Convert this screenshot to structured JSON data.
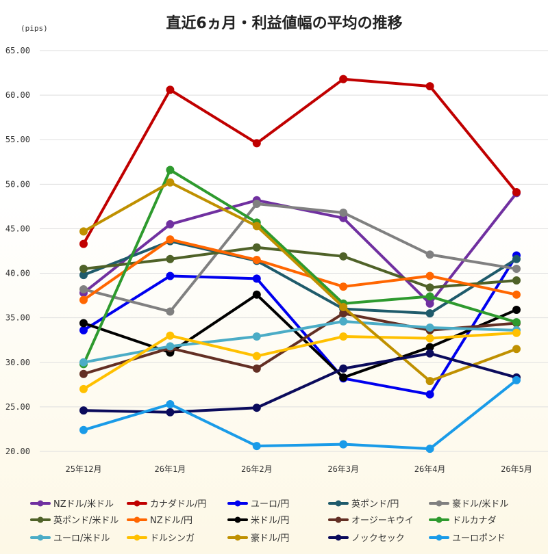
{
  "chart_data": {
    "type": "line",
    "title": "直近6ヵ月・利益値幅の平均の推移",
    "ylabel": "(pips)",
    "xlabel": "",
    "ylim": [
      20,
      65
    ],
    "yticks": [
      "20.00",
      "25.00",
      "30.00",
      "35.00",
      "40.00",
      "45.00",
      "50.00",
      "55.00",
      "60.00",
      "65.00"
    ],
    "categories": [
      "25年12月",
      "26年1月",
      "26年2月",
      "26年3月",
      "26年4月",
      "26年5月"
    ],
    "grid": true,
    "legend_position": "bottom",
    "series": [
      {
        "name": "NZドル/米ドル",
        "color": "#7030a0",
        "values": [
          37.8,
          45.5,
          48.2,
          46.2,
          36.6,
          49.0
        ]
      },
      {
        "name": "カナダドル/円",
        "color": "#c00000",
        "values": [
          43.3,
          60.6,
          54.6,
          61.8,
          61.0,
          49.1
        ]
      },
      {
        "name": "ユーロ/円",
        "color": "#0000ee",
        "values": [
          33.6,
          39.7,
          39.4,
          28.2,
          26.4,
          42.0
        ]
      },
      {
        "name": "英ポンド/円",
        "color": "#1f5b6b",
        "values": [
          39.8,
          43.6,
          41.4,
          36.0,
          35.5,
          41.6
        ]
      },
      {
        "name": "豪ドル/米ドル",
        "color": "#808080",
        "values": [
          38.2,
          35.7,
          47.8,
          46.8,
          42.1,
          40.5
        ]
      },
      {
        "name": "英ポンド/米ドル",
        "color": "#4f6228",
        "values": [
          40.5,
          41.6,
          42.9,
          41.9,
          38.4,
          39.2
        ]
      },
      {
        "name": "NZドル/円",
        "color": "#ff6600",
        "values": [
          37.0,
          43.8,
          41.5,
          38.5,
          39.7,
          37.6
        ]
      },
      {
        "name": "米ドル/円",
        "color": "#000000",
        "values": [
          34.4,
          31.1,
          37.6,
          28.3,
          31.7,
          35.9
        ]
      },
      {
        "name": "オージーキウイ",
        "color": "#632f24",
        "values": [
          28.7,
          31.6,
          29.3,
          35.5,
          33.6,
          34.4
        ]
      },
      {
        "name": "ドルカナダ",
        "color": "#2e9a2e",
        "values": [
          29.8,
          51.6,
          45.7,
          36.6,
          37.4,
          34.5
        ]
      },
      {
        "name": "ユーロ/米ドル",
        "color": "#4bacc6",
        "values": [
          30.0,
          31.8,
          32.9,
          34.6,
          33.9,
          33.6
        ]
      },
      {
        "name": "ドルシンガ",
        "color": "#ffc000",
        "values": [
          27.0,
          33.0,
          30.7,
          32.9,
          32.7,
          33.3
        ]
      },
      {
        "name": "豪ドル/円",
        "color": "#bf9000",
        "values": [
          44.7,
          50.2,
          45.3,
          36.2,
          27.9,
          31.5
        ]
      },
      {
        "name": "ノックセック",
        "color": "#0b0b5c",
        "values": [
          24.6,
          24.4,
          24.9,
          29.3,
          31.0,
          28.3
        ]
      },
      {
        "name": "ユーロポンド",
        "color": "#1a9be8",
        "values": [
          22.4,
          25.3,
          20.6,
          20.8,
          20.3,
          28.0
        ]
      }
    ]
  }
}
